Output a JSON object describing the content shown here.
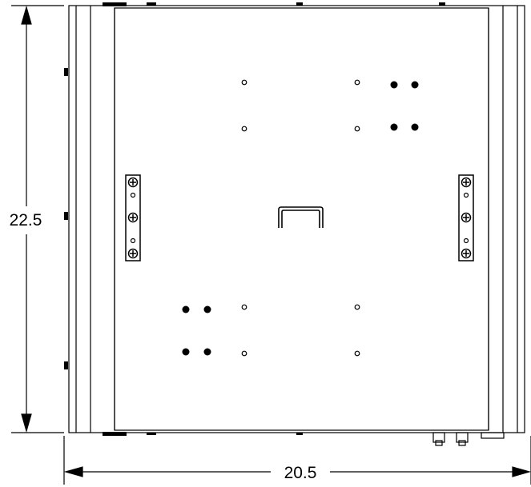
{
  "dimensions": {
    "height_label": "22.5",
    "width_label": "20.5"
  },
  "colors": {
    "line": "#000000",
    "background": "#ffffff"
  }
}
